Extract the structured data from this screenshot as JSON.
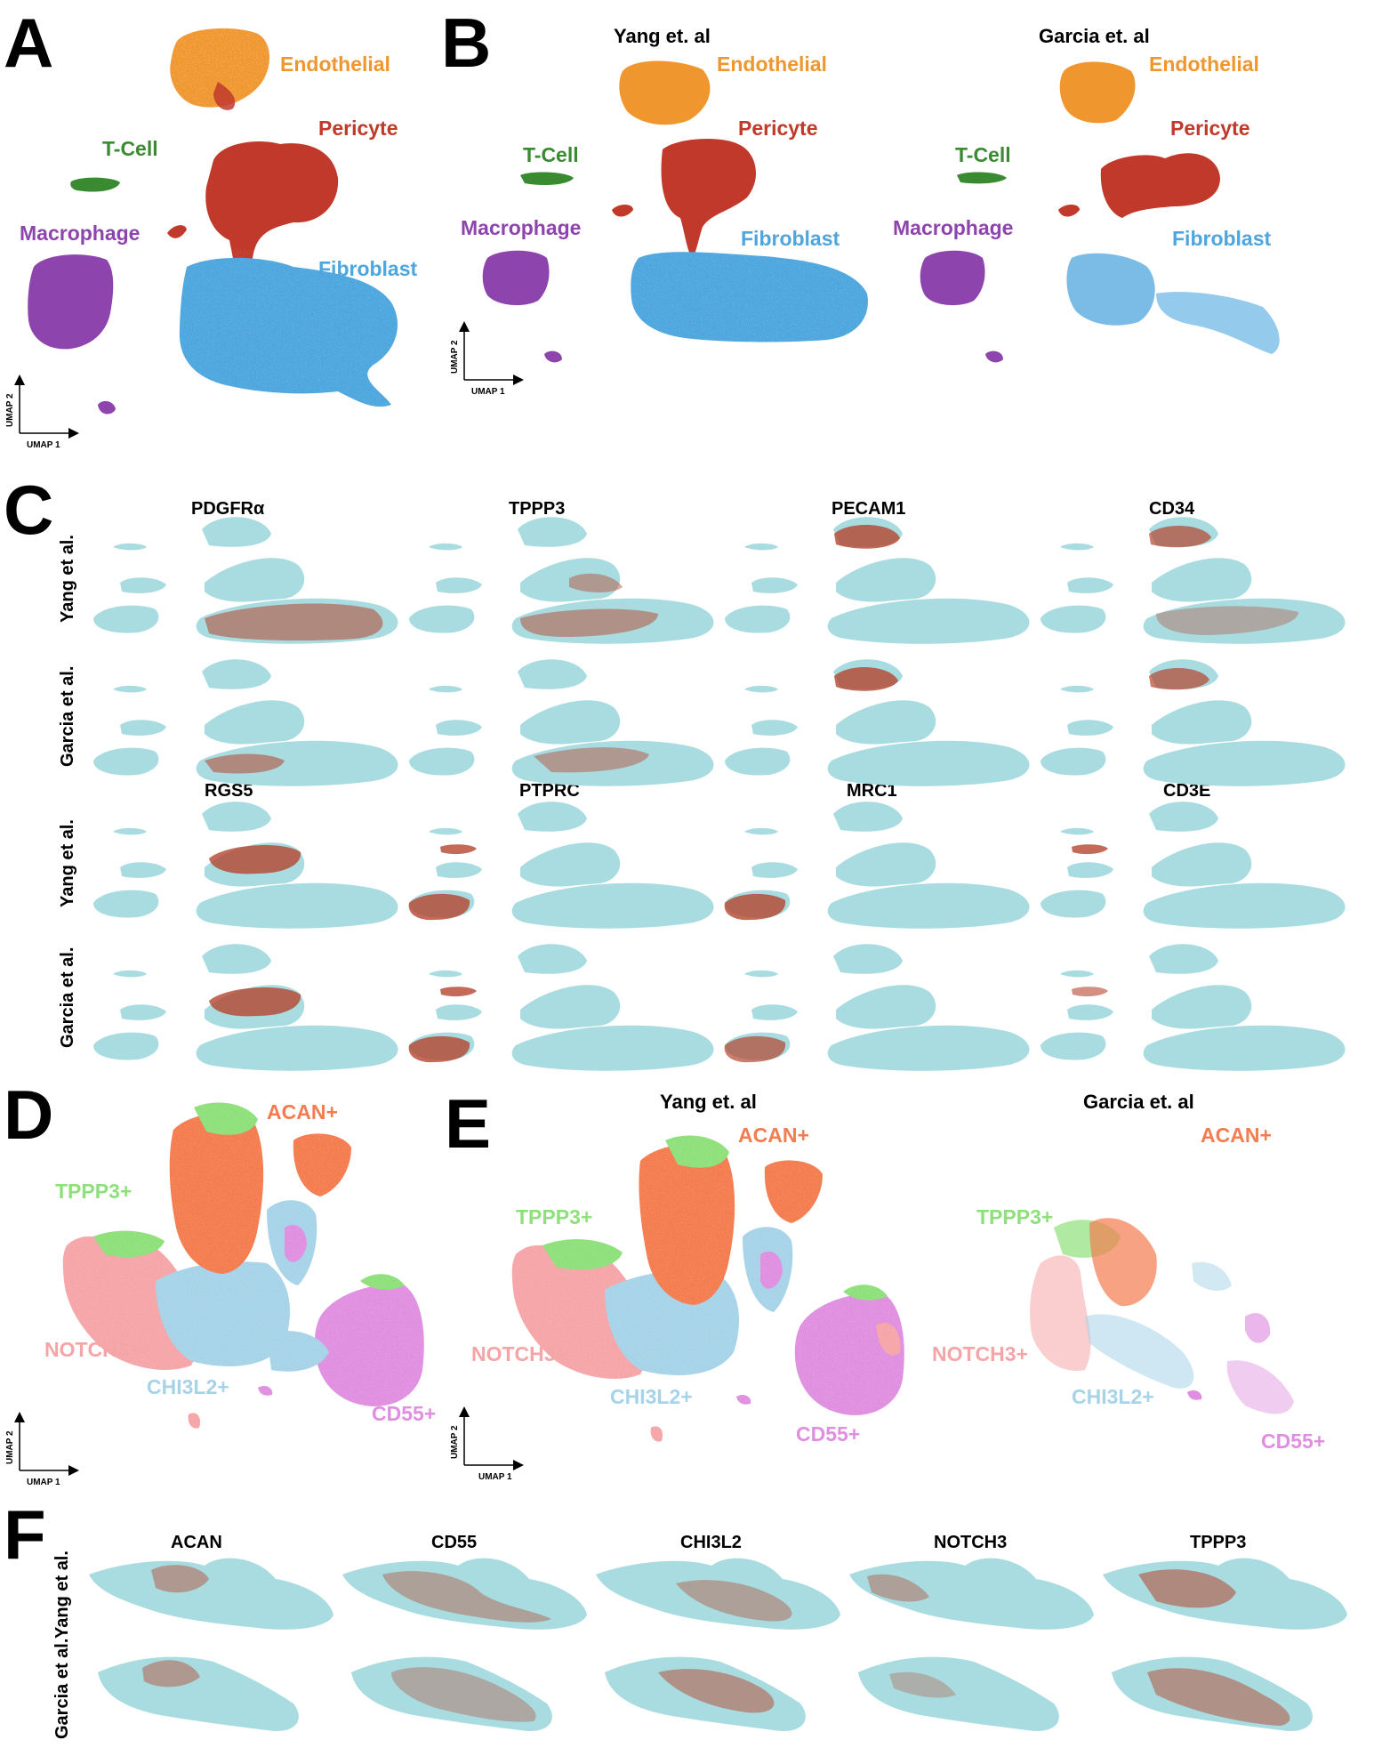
{
  "panels": {
    "A": {
      "label": "A",
      "clusters": [
        {
          "name": "Endothelial",
          "color": "#f0962e"
        },
        {
          "name": "Pericyte",
          "color": "#c0392b"
        },
        {
          "name": "T-Cell",
          "color": "#3a8a32"
        },
        {
          "name": "Macrophage",
          "color": "#8e44ad"
        },
        {
          "name": "Fibroblast",
          "color": "#4da6de"
        }
      ],
      "axis": {
        "x": "UMAP 1",
        "y": "UMAP 2"
      }
    },
    "B": {
      "label": "B",
      "datasets": [
        "Yang et. al",
        "Garcia et. al"
      ],
      "clusters": [
        "Endothelial",
        "Pericyte",
        "T-Cell",
        "Macrophage",
        "Fibroblast"
      ],
      "axis": {
        "x": "UMAP 1",
        "y": "UMAP 2"
      }
    },
    "C": {
      "label": "C",
      "genes_row1": [
        "PDGFRα",
        "TPPP3",
        "PECAM1",
        "CD34"
      ],
      "genes_row2": [
        "RGS5",
        "PTPRC",
        "MRC1",
        "CD3E"
      ],
      "row_labels": [
        "Yang et al.",
        "Garcia et al.",
        "Yang et al.",
        "Garcia et al."
      ]
    },
    "D": {
      "label": "D",
      "clusters": [
        {
          "name": "ACAN+",
          "color": "#f47c4f"
        },
        {
          "name": "TPPP3+",
          "color": "#8ee07a"
        },
        {
          "name": "NOTCH3+",
          "color": "#f5a5a8"
        },
        {
          "name": "CHI3L2+",
          "color": "#a6d3e8"
        },
        {
          "name": "CD55+",
          "color": "#e08fe0"
        }
      ],
      "axis": {
        "x": "UMAP 1",
        "y": "UMAP 2"
      }
    },
    "E": {
      "label": "E",
      "datasets": [
        "Yang et. al",
        "Garcia et. al"
      ],
      "clusters": [
        "ACAN+",
        "TPPP3+",
        "NOTCH3+",
        "CHI3L2+",
        "CD55+"
      ],
      "axis": {
        "x": "UMAP 1",
        "y": "UMAP 2"
      }
    },
    "F": {
      "label": "F",
      "genes": [
        "ACAN",
        "CD55",
        "CHI3L2",
        "NOTCH3",
        "TPPP3"
      ],
      "row_labels": [
        "Yang et al.",
        "Garcia et al."
      ]
    }
  },
  "colors": {
    "background_cells": "#a8dce0",
    "expression_high": "#b5452e",
    "expression_mid": "#8a8a8a"
  }
}
